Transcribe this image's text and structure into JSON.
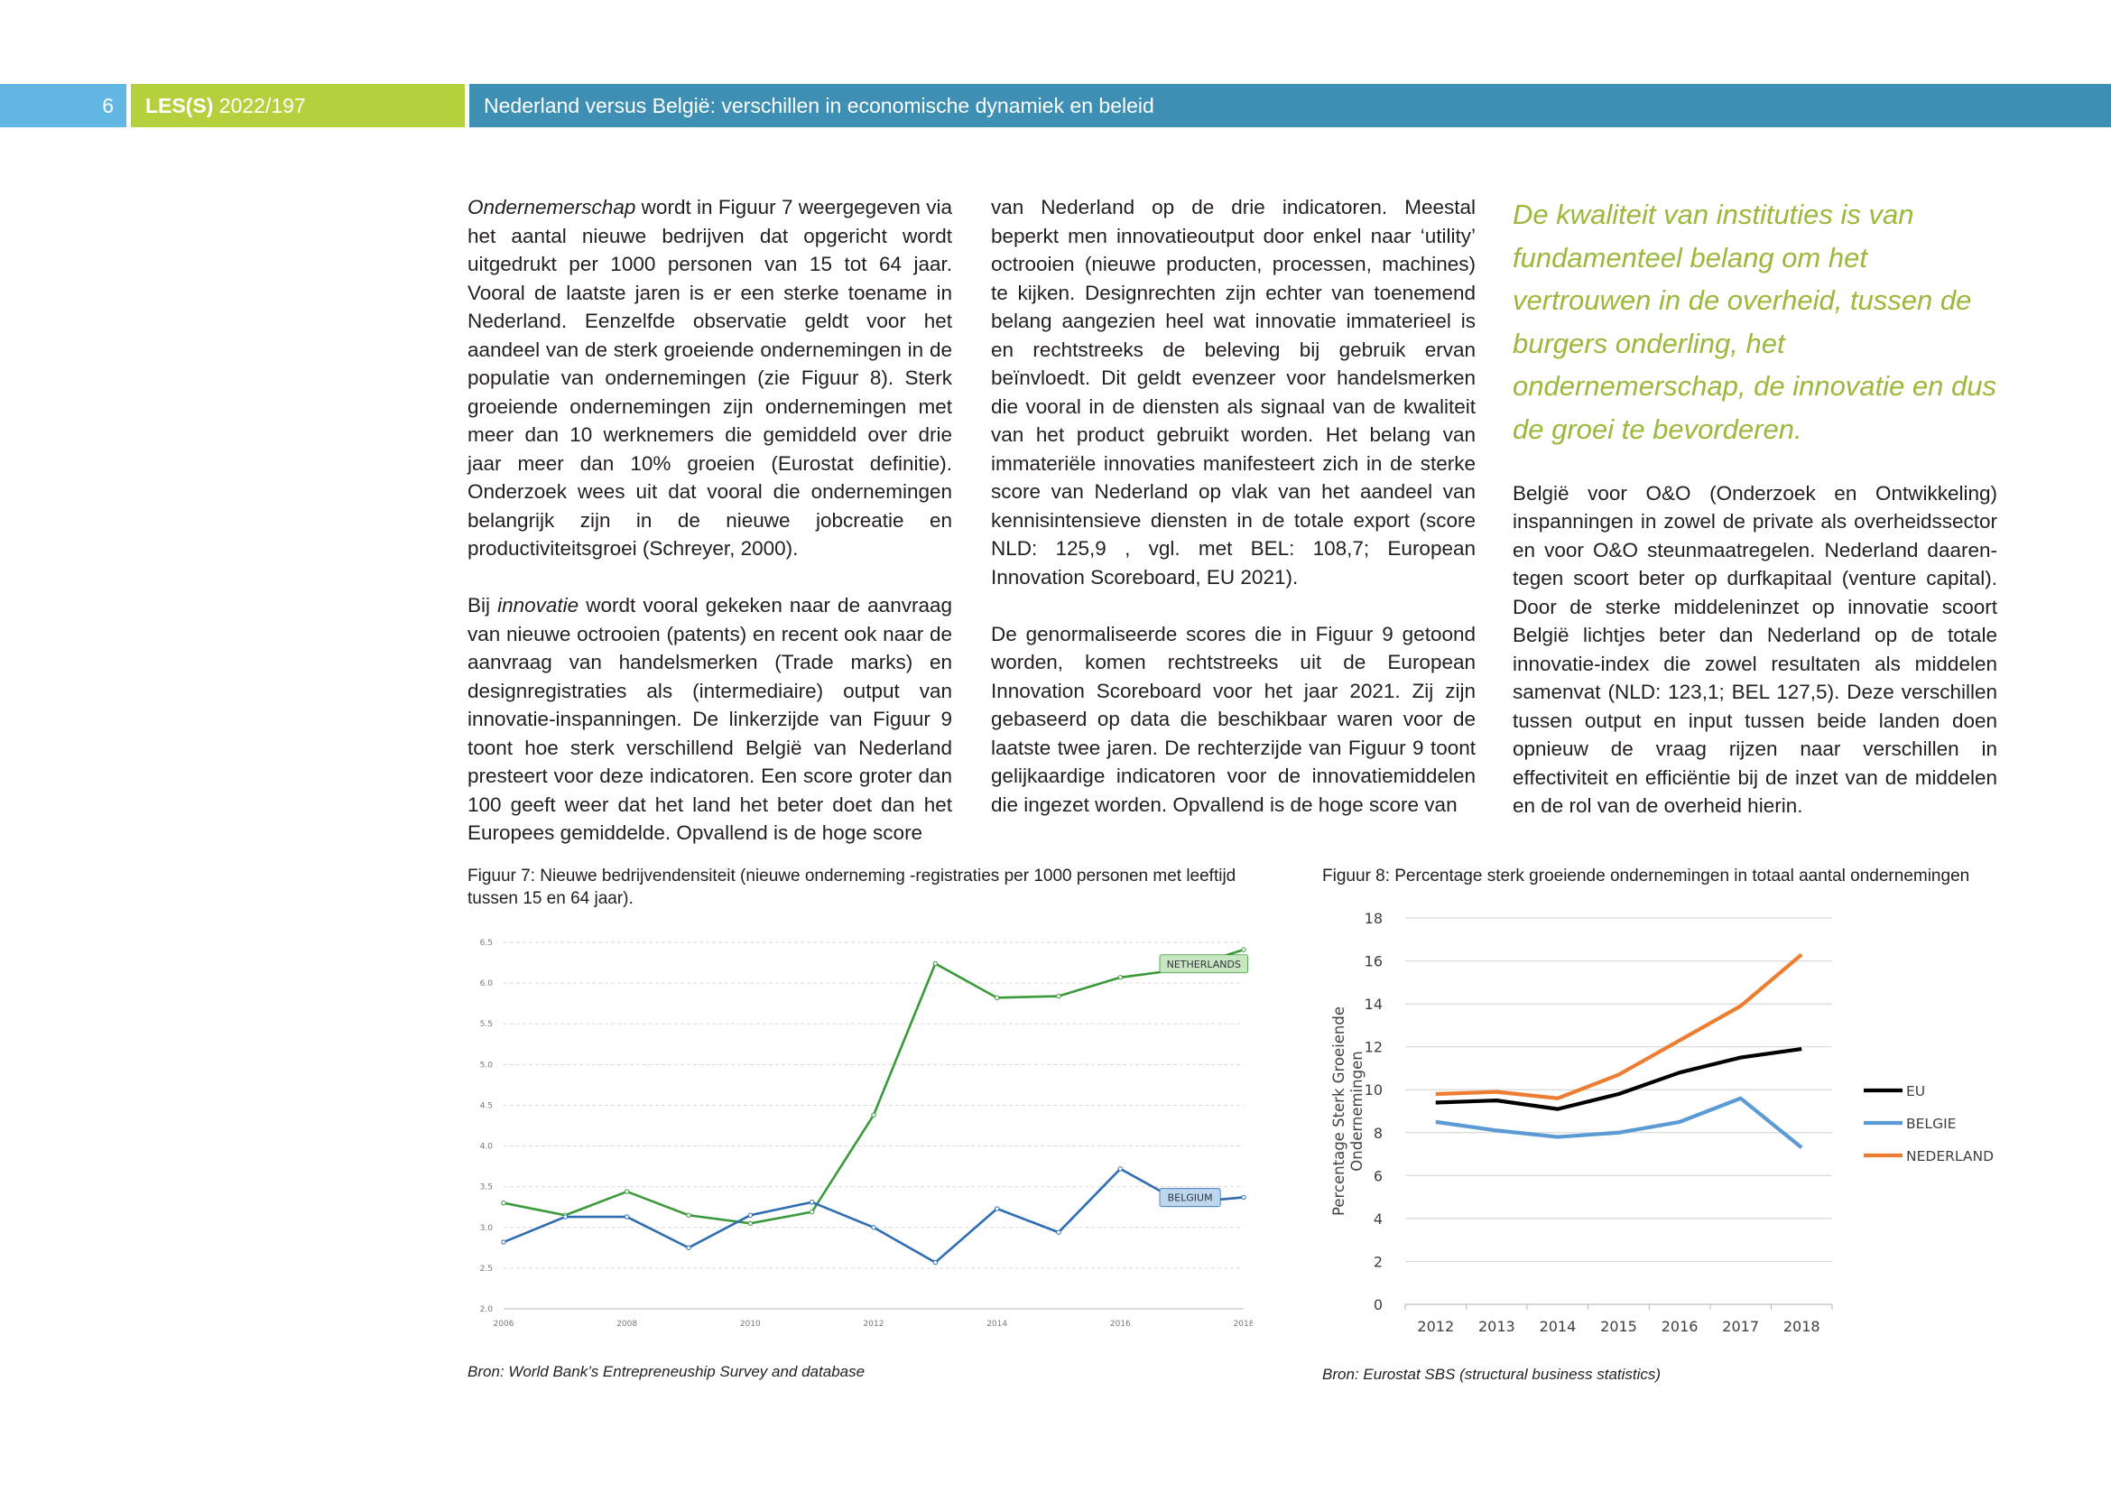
{
  "header": {
    "page_number": "6",
    "series_bold": "LES(S)",
    "series_rest": " 2022/197",
    "title": "Nederland versus België: verschillen in economische dynamiek en beleid"
  },
  "text": {
    "col1_p1_italic": "Ondernemerschap",
    "col1_p1_rest": " wordt in Figuur 7 weergegeven via het aantal nieuwe bedrijven dat opgericht wordt uitgedrukt per 1000 personen van 15 tot 64 jaar. Vooral de laatste jaren is er een sterke toename in Nederland. Eenzelfde observatie geldt voor het aandeel van de sterk groeiende ondernemingen in de populatie van ondernemingen (zie Figuur 8). Sterk groeiende ondernemingen zijn ondernemingen met meer dan 10 werknemers die gemiddeld over drie jaar meer dan 10% groeien (Eurostat definitie). Onderzoek wees uit dat vooral die ondernemingen belangrijk zijn in de nieuwe jobcreatie en productiviteitsgroei (Schreyer, 2000).",
    "col1_p2_start": "Bij ",
    "col1_p2_italic": "innovatie",
    "col1_p2_rest": " wordt vooral gekeken naar de aanvraag van nieuwe octrooien (patents) en recent ook naar de aanvraag van handelsmerken (Trade marks) en designregistraties als (intermediaire) output van innovatie-inspanningen. De linkerzijde van Figuur 9 toont hoe sterk verschillend België van Nederland presteert voor deze indicatoren. Een score groter dan 100 geeft weer dat het land het beter doet dan het Europees gemiddelde. Opvallend is de hoge score",
    "col2_p1": "van Nederland op de drie indicatoren. Meestal beperkt men innovatieoutput door enkel naar ‘utility’ octrooien (nieuwe producten, processen, machines) te kijken. Designrechten zijn echter van toenemend belang aangezien heel wat innovatie immaterieel is en rechtstreeks de beleving bij gebruik ervan beïnvloedt. Dit geldt evenzeer voor handelsmerken die vooral in de diensten als signaal van de kwaliteit van het product gebruikt worden. Het belang van immateriële innovaties manifesteert zich in de sterke score van Nederland op vlak van het aandeel van kennis­intensieve diensten in de totale export (score NLD: 125,9 , vgl. met BEL: 108,7; European Innovation Scoreboard, EU 2021).",
    "col2_p2": "De genormaliseerde scores die in Figuur 9 getoond worden, komen rechtstreeks uit de European Innovation Scoreboard voor het jaar 2021. Zij zijn gebaseerd op data die beschikbaar waren voor de laatste twee jaren. De rechterzijde van Figuur 9 toont gelijkaardige indicatoren voor de innovatiemiddelen die ingezet worden. Opvallend is de hoge score van",
    "quote": "De kwaliteit van instituties is van fundamenteel belang om het vertrouwen in de overheid, tussen de burgers onderling, het ondernemerschap, de innovatie en dus de groei te bevorderen.",
    "col3_p1": "België voor O&O (Onderzoek en Ontwikkeling) inspanningen in zowel de private als overheidssector en voor O&O steunmaatregelen. Nederland daaren­tegen scoort beter op durfkapitaal (venture capital). Door de sterke middeleninzet op innovatie scoort België lichtjes beter dan Nederland op de totale innovatie-index die zowel resultaten als middelen samenvat (NLD: 123,1; BEL 127,5). Deze verschillen tussen output en input tussen beide landen doen opnieuw de vraag rijzen naar verschillen in effectiviteit en efficiëntie bij de inzet van de middelen en de rol van de overheid hierin."
  },
  "figures": {
    "fig7_caption": "Figuur 7: Nieuwe bedrijvendensiteit (nieuwe onderneming -registraties per 1000 personen met leeftijd tussen 15 en 64 jaar).",
    "fig7_source": "Bron: World Bank’s Entrepreneuship Survey and database",
    "fig8_caption": "Figuur 8: Percentage sterk groeiende ondernemingen in totaal aantal ondernemingen",
    "fig8_source": "Bron: Eurostat SBS (structural business statistics)"
  },
  "chart_data": [
    {
      "type": "line",
      "title": "",
      "x": [
        2006,
        2007,
        2008,
        2009,
        2010,
        2011,
        2012,
        2013,
        2014,
        2015,
        2016,
        2017,
        2018
      ],
      "x_tick_labels": [
        "2006",
        "2008",
        "2010",
        "2012",
        "2014",
        "2016",
        "2018"
      ],
      "y_tick_labels": [
        "2.0",
        "2.5",
        "3.0",
        "3.5",
        "4.0",
        "4.5",
        "5.0",
        "5.5",
        "6.0",
        "6.5"
      ],
      "ylim": [
        2.0,
        6.5
      ],
      "grid": true,
      "legend": "inline labels",
      "series": [
        {
          "name": "NETHERLANDS",
          "color": "#3a9a3a",
          "label_bg": "#c8e6c0",
          "values": [
            3.3,
            3.15,
            3.44,
            3.15,
            3.05,
            3.19,
            4.38,
            6.24,
            5.82,
            5.84,
            6.07,
            6.17,
            6.41
          ]
        },
        {
          "name": "BELGIUM",
          "color": "#2e6db4",
          "label_bg": "#bcd7ee",
          "values": [
            2.82,
            3.13,
            3.13,
            2.75,
            3.15,
            3.31,
            3.0,
            2.57,
            3.23,
            2.94,
            3.72,
            3.3,
            3.37
          ]
        }
      ]
    },
    {
      "type": "line",
      "title": "",
      "ylabel_line1": "Percentage Sterk Groeiende",
      "ylabel_line2": "Ondernemingen",
      "x": [
        "2012",
        "2013",
        "2014",
        "2015",
        "2016",
        "2017",
        "2018"
      ],
      "y_tick_labels": [
        "0",
        "2",
        "4",
        "6",
        "8",
        "10",
        "12",
        "14",
        "16",
        "18"
      ],
      "ylim": [
        0,
        18
      ],
      "grid": true,
      "legend": "right",
      "series": [
        {
          "name": "EU",
          "color": "#000000",
          "values": [
            9.4,
            9.5,
            9.1,
            9.8,
            10.8,
            11.5,
            11.9
          ]
        },
        {
          "name": "BELGIE",
          "color": "#5b9bd5",
          "values": [
            8.5,
            8.1,
            7.8,
            8.0,
            8.5,
            9.6,
            7.3
          ]
        },
        {
          "name": "NEDERLAND",
          "color": "#ed7d31",
          "values": [
            9.8,
            9.9,
            9.6,
            10.7,
            12.3,
            13.9,
            16.3
          ]
        }
      ]
    }
  ]
}
